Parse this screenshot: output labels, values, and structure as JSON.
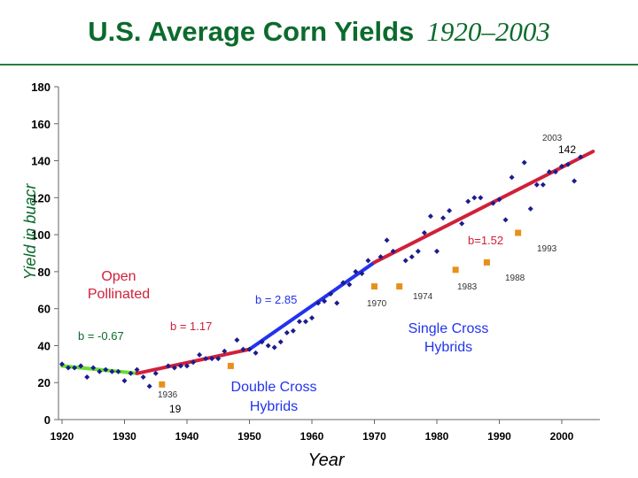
{
  "title": {
    "main": "U.S. Average Corn Yields",
    "years": "1920–2003"
  },
  "chart_data": {
    "type": "scatter",
    "xlabel": "Year",
    "ylabel": "Yield in buacr",
    "xlim": [
      1920,
      2003
    ],
    "ylim": [
      0,
      180
    ],
    "xticks": [
      "1920",
      "1930",
      "1940",
      "1950",
      "1960",
      "1970",
      "1980",
      "1990",
      "2000"
    ],
    "yticks": [
      "0",
      "20",
      "40",
      "60",
      "80",
      "100",
      "120",
      "140",
      "160",
      "180"
    ],
    "grid": false,
    "plot_bg": "#ffffff",
    "series": [
      {
        "color": "#1c1c8c",
        "marker": "diamond",
        "x": [
          1920,
          1921,
          1922,
          1923,
          1924,
          1925,
          1926,
          1927,
          1928,
          1929,
          1930,
          1931,
          1932,
          1933,
          1934,
          1935,
          1936,
          1937,
          1938,
          1939,
          1940,
          1941,
          1942,
          1943,
          1944,
          1945,
          1946,
          1947,
          1948,
          1949,
          1950,
          1951,
          1952,
          1953,
          1954,
          1955,
          1956,
          1957,
          1958,
          1959,
          1960,
          1961,
          1962,
          1963,
          1964,
          1965,
          1966,
          1967,
          1968,
          1969,
          1970,
          1971,
          1972,
          1973,
          1974,
          1975,
          1976,
          1977,
          1978,
          1979,
          1980,
          1981,
          1982,
          1983,
          1984,
          1985,
          1986,
          1987,
          1988,
          1989,
          1990,
          1991,
          1992,
          1993,
          1994,
          1995,
          1996,
          1997,
          1998,
          1999,
          2000,
          2001,
          2002,
          2003
        ],
        "y": [
          30,
          28,
          28,
          29,
          23,
          28,
          26,
          27,
          26,
          26,
          21,
          25,
          27,
          23,
          18,
          25,
          19,
          29,
          28,
          29,
          29,
          31,
          35,
          33,
          33,
          33,
          37,
          29,
          43,
          38,
          38,
          36,
          42,
          40,
          39,
          42,
          47,
          48,
          53,
          53,
          55,
          63,
          64,
          68,
          63,
          74,
          73,
          80,
          79,
          86,
          72,
          88,
          97,
          91,
          72,
          86,
          88,
          91,
          101,
          110,
          91,
          109,
          113,
          81,
          106,
          118,
          120,
          120,
          85,
          117,
          119,
          108,
          131,
          101,
          139,
          114,
          127,
          127,
          134,
          134,
          137,
          138,
          129,
          142
        ]
      },
      {
        "color": "#e8901c",
        "marker": "square",
        "x": [
          1936,
          1947,
          1970,
          1974,
          1983,
          1988,
          1993
        ],
        "y": [
          19,
          29,
          72,
          72,
          81,
          85,
          101
        ]
      }
    ],
    "trend_lines": [
      {
        "label": "b = -0.67",
        "slope": -0.67,
        "x": [
          1920,
          1932
        ],
        "y": [
          29,
          25
        ],
        "color": "#66dd33"
      },
      {
        "label": "b = 1.17",
        "slope": 1.17,
        "x": [
          1932,
          1950
        ],
        "y": [
          25,
          38
        ],
        "color": "#d0203a"
      },
      {
        "label": "b = 2.85",
        "slope": 2.85,
        "x": [
          1950,
          1970
        ],
        "y": [
          38,
          85
        ],
        "color": "#2233ee"
      },
      {
        "label": "b=1.52",
        "slope": 1.52,
        "x": [
          1970,
          2005
        ],
        "y": [
          85,
          145
        ],
        "color": "#d0203a"
      }
    ],
    "annotations": [
      {
        "text": "Open Pollinated",
        "kind": "region",
        "color": "#d0203a"
      },
      {
        "text": "Double Cross Hybrids",
        "kind": "region",
        "color": "#2233ee"
      },
      {
        "text": "Single Cross Hybrids",
        "kind": "region",
        "color": "#2233ee"
      },
      {
        "text": "1936",
        "kind": "point"
      },
      {
        "text": "19",
        "kind": "point"
      },
      {
        "text": "1970",
        "kind": "point"
      },
      {
        "text": "1974",
        "kind": "point"
      },
      {
        "text": "1983",
        "kind": "point"
      },
      {
        "text": "1988",
        "kind": "point"
      },
      {
        "text": "1993",
        "kind": "point"
      },
      {
        "text": "2003",
        "kind": "point"
      },
      {
        "text": "142",
        "kind": "point"
      }
    ]
  }
}
